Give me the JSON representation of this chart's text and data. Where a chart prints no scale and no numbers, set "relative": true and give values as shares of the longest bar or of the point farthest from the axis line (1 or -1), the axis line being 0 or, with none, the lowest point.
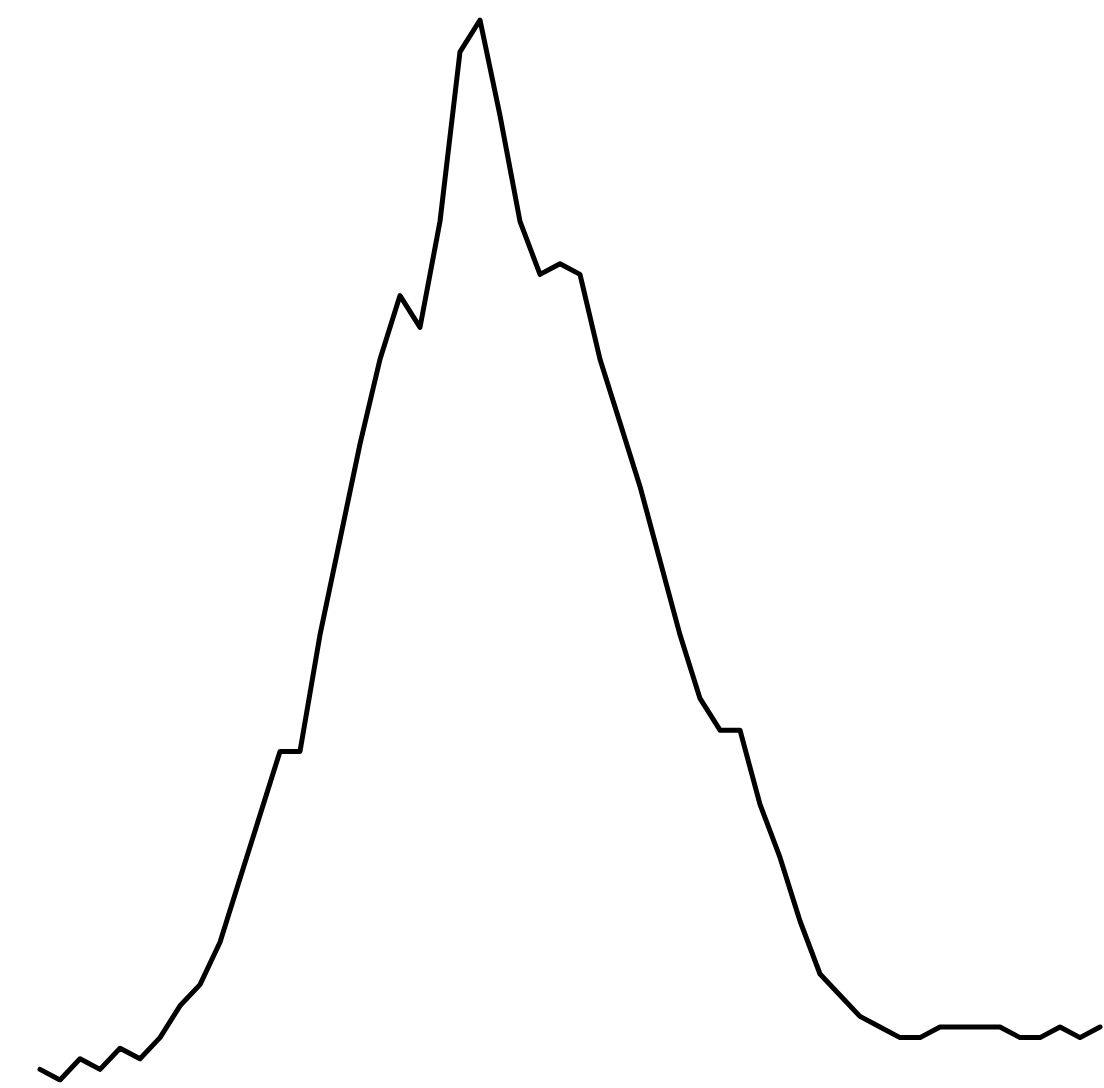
{
  "chart_data": {
    "type": "line",
    "relative": true,
    "color": "#000000",
    "categories": [
      null,
      null,
      null,
      null,
      null,
      null,
      null,
      null,
      null,
      null,
      null,
      null,
      null,
      null,
      null,
      null,
      null,
      null,
      null,
      null,
      null,
      null,
      null,
      null,
      null,
      null,
      null,
      null,
      null,
      null,
      null,
      null,
      null,
      null,
      null,
      null,
      null,
      null,
      null,
      null,
      null,
      null,
      null,
      null,
      null,
      null,
      null,
      null,
      null,
      null,
      null,
      null,
      null,
      null
    ],
    "values": [
      0.01,
      0,
      0.02,
      0.01,
      0.03,
      0.02,
      0.04,
      0.07,
      0.09,
      0.13,
      0.19,
      0.25,
      0.31,
      0.31,
      0.42,
      0.51,
      0.6,
      0.68,
      0.74,
      0.71,
      0.81,
      0.97,
      1,
      0.91,
      0.81,
      0.76,
      0.77,
      0.76,
      0.68,
      0.62,
      0.56,
      0.49,
      0.42,
      0.36,
      0.33,
      0.33,
      0.26,
      0.21,
      0.15,
      0.1,
      0.08,
      0.06,
      0.05,
      0.04,
      0.04,
      0.05,
      0.05,
      0.05,
      0.05,
      0.04,
      0.04,
      0.05,
      0.04,
      0.05
    ]
  }
}
